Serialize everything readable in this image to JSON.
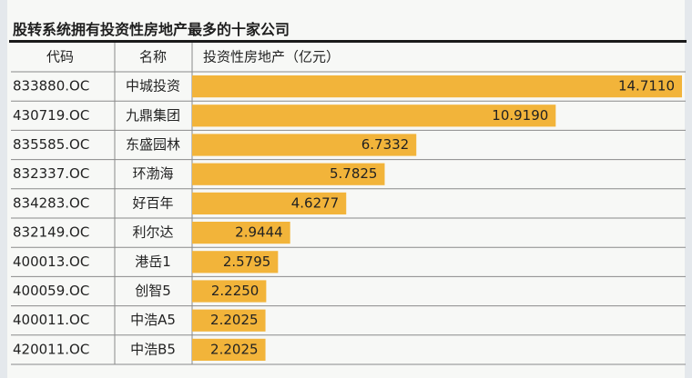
{
  "chart_data": {
    "type": "bar",
    "title": "股转系统拥有投资性房地产最多的十家公司",
    "columns": {
      "code": "代码",
      "name": "名称",
      "value": "投资性房地产（亿元）"
    },
    "rows": [
      {
        "code": "833880.OC",
        "name": "中城投资",
        "value": "14.7110"
      },
      {
        "code": "430719.OC",
        "name": "九鼎集团",
        "value": "10.9190"
      },
      {
        "code": "835585.OC",
        "name": "东盛园林",
        "value": "6.7332"
      },
      {
        "code": "832337.OC",
        "name": "环渤海",
        "value": "5.7825"
      },
      {
        "code": "834283.OC",
        "name": "好百年",
        "value": "4.6277"
      },
      {
        "code": "832149.OC",
        "name": "利尔达",
        "value": "2.9444"
      },
      {
        "code": "400013.OC",
        "name": "港岳1",
        "value": "2.5795"
      },
      {
        "code": "400059.OC",
        "name": "创智5",
        "value": "2.2250"
      },
      {
        "code": "400011.OC",
        "name": "中浩A5",
        "value": "2.2025"
      },
      {
        "code": "420011.OC",
        "name": "中浩B5",
        "value": "2.2025"
      }
    ],
    "bar_color": "#f2b43a",
    "xlim": [
      0,
      14.711
    ]
  }
}
